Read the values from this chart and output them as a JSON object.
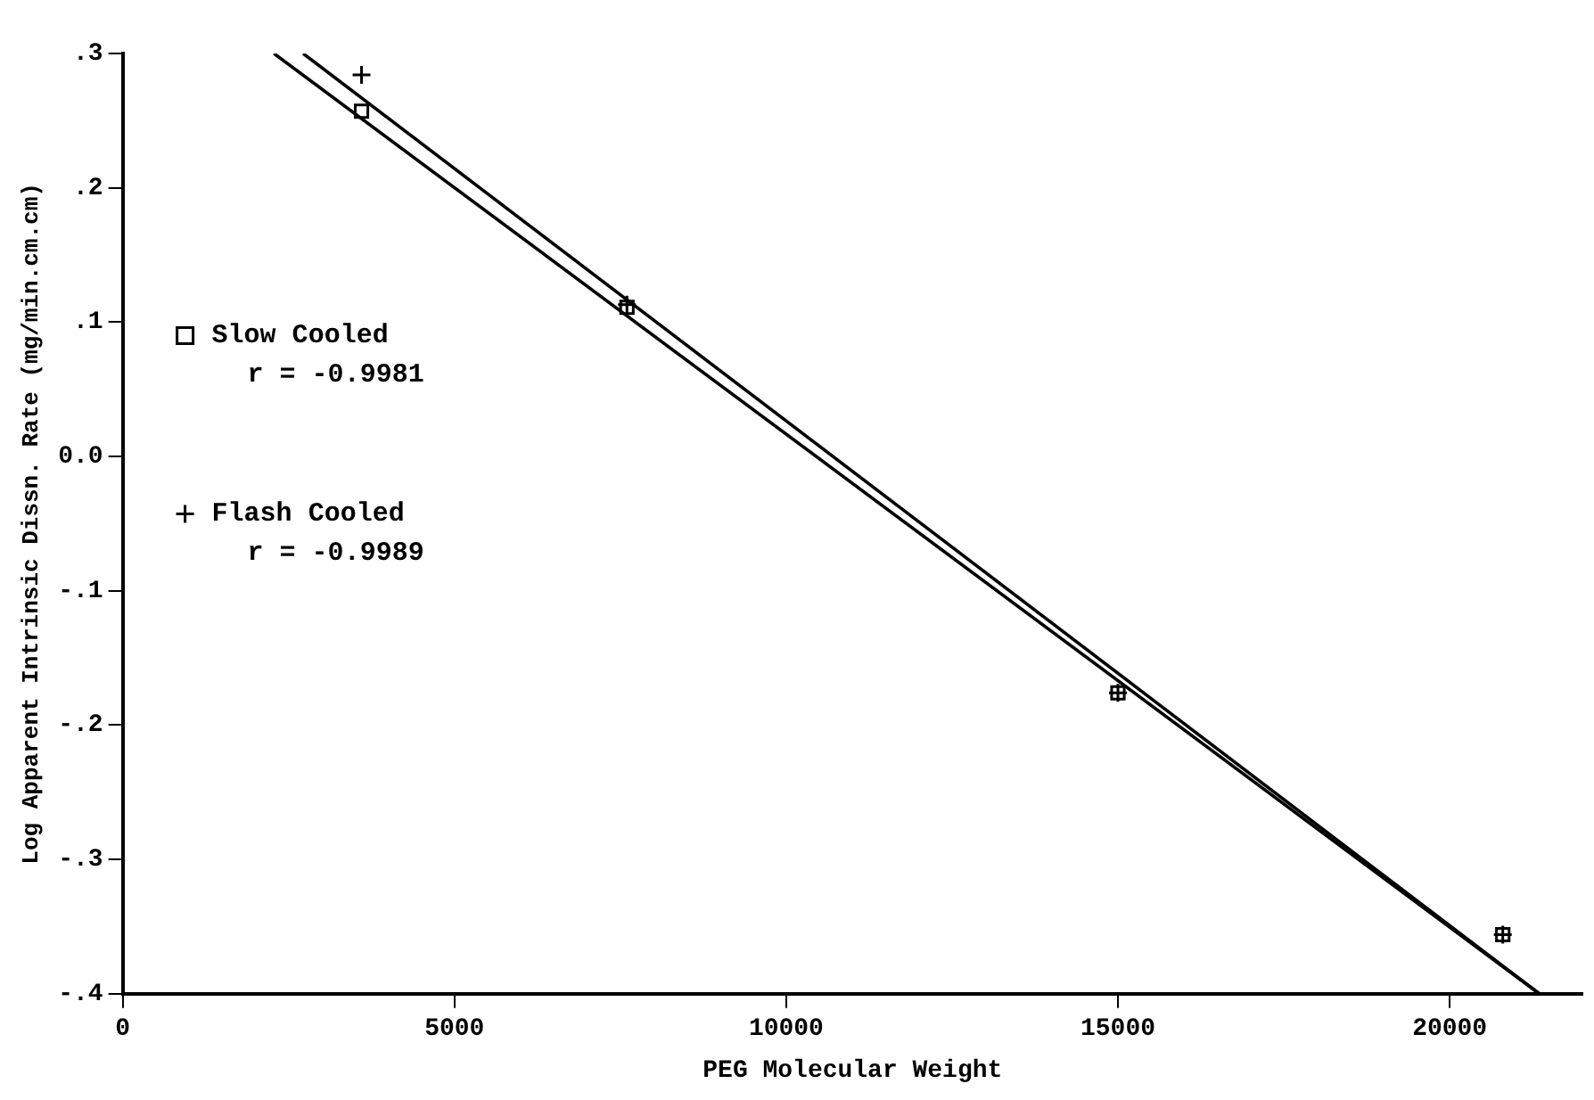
{
  "chart_data": {
    "type": "scatter",
    "xlabel": "PEG Molecular Weight",
    "ylabel": "Log Apparent Intrinsic Dissn. Rate (mg/min.cm.cm)",
    "xlim": [
      0,
      22000
    ],
    "xticks": [
      0,
      5000,
      10000,
      15000,
      20000
    ],
    "ylim": [
      -0.4,
      0.3
    ],
    "yticks": [
      {
        "value": -0.4,
        "label": "-.4"
      },
      {
        "value": -0.3,
        "label": "-.3"
      },
      {
        "value": -0.2,
        "label": "-.2"
      },
      {
        "value": -0.1,
        "label": "-.1"
      },
      {
        "value": 0,
        "label": "0.0"
      },
      {
        "value": 0.1,
        "label": ".1"
      },
      {
        "value": 0.2,
        "label": ".2"
      },
      {
        "value": 0.3,
        "label": ".3"
      }
    ],
    "grid": false,
    "legend": "left",
    "annotations": [
      "r = -0.9981",
      "r = -0.9989"
    ],
    "series": [
      {
        "name": "Slow Cooled",
        "marker": "square",
        "color": "#000000",
        "x": [
          3600,
          7600,
          15000,
          20800
        ],
        "values": [
          0.257,
          0.111,
          -0.176,
          -0.356
        ]
      },
      {
        "name": "Flash Cooled",
        "marker": "cross",
        "color": "#000000",
        "x": [
          3600,
          7600,
          15000,
          20800
        ],
        "values": [
          0.284,
          0.113,
          -0.176,
          -0.356
        ]
      },
      {
        "type": "line",
        "marker": "none",
        "color": "#000000",
        "x": [
          2280,
          21350
        ],
        "values": [
          0.3,
          -0.4
        ]
      },
      {
        "type": "line",
        "marker": "none",
        "color": "#000000",
        "x": [
          2720,
          21350
        ],
        "values": [
          0.3,
          -0.4
        ]
      }
    ]
  }
}
